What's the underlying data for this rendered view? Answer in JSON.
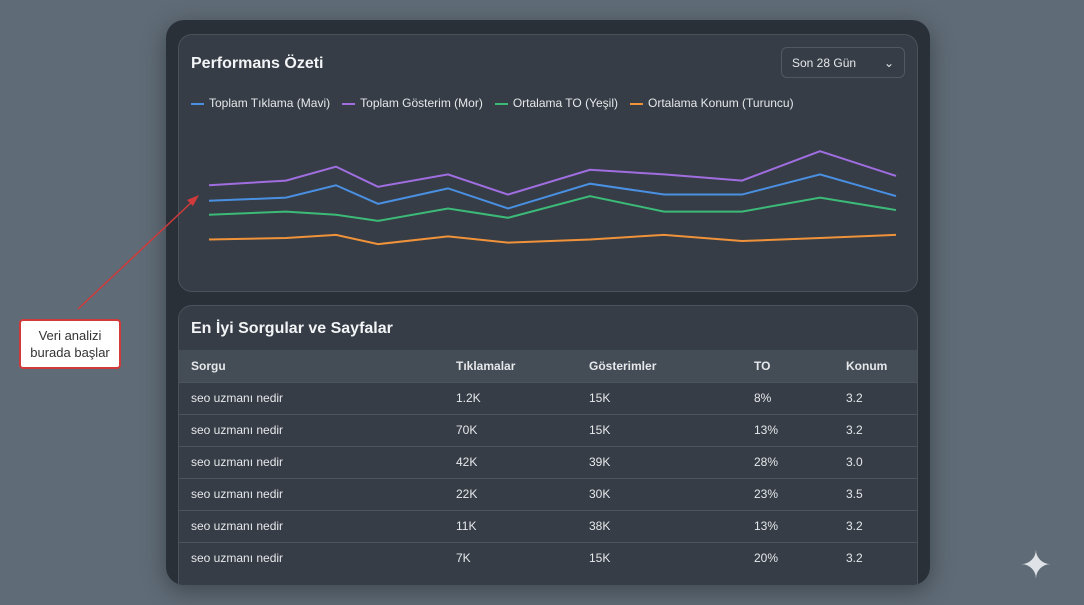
{
  "summary": {
    "title": "Performans Özeti",
    "range_select": "Son 28 Gün"
  },
  "chart_data": {
    "type": "line",
    "title": "",
    "xlabel": "",
    "ylabel": "",
    "ylim": [
      0,
      100
    ],
    "grid": false,
    "legend_position": "top-left",
    "x": [
      1,
      2,
      3,
      4,
      5,
      6,
      7,
      8,
      9,
      10,
      11
    ],
    "series": [
      {
        "name": "Toplam Tıklama (Mavi)",
        "color": "#4a90e2",
        "values": [
          55,
          57,
          65,
          53,
          63,
          50,
          66,
          59,
          59,
          72,
          58
        ]
      },
      {
        "name": "Toplam Gösterim (Mor)",
        "color": "#a06ee0",
        "values": [
          65,
          68,
          77,
          64,
          72,
          59,
          75,
          72,
          68,
          87,
          71
        ]
      },
      {
        "name": "Ortalama TO (Yeşil)",
        "color": "#3cba78",
        "values": [
          46,
          48,
          46,
          42,
          50,
          44,
          58,
          48,
          48,
          57,
          49
        ]
      },
      {
        "name": "Ortalama Konum (Turuncu)",
        "color": "#f0923a",
        "values": [
          30,
          31,
          33,
          27,
          32,
          28,
          30,
          33,
          29,
          31,
          33
        ]
      }
    ]
  },
  "table": {
    "title": "En İyi Sorgular ve Sayfalar",
    "headers": [
      "Sorgu",
      "Tıklamalar",
      "Gösterimler",
      "TO",
      "Konum"
    ],
    "rows": [
      [
        "seo uzmanı nedir",
        "1.2K",
        "15K",
        "8%",
        "3.2"
      ],
      [
        "seo uzmanı nedir",
        "70K",
        "15K",
        "13%",
        "3.2"
      ],
      [
        "seo uzmanı nedir",
        "42K",
        "39K",
        "28%",
        "3.0"
      ],
      [
        "seo uzmanı nedir",
        "22K",
        "30K",
        "23%",
        "3.5"
      ],
      [
        "seo uzmanı nedir",
        "11K",
        "38K",
        "13%",
        "3.2"
      ],
      [
        "seo uzmanı nedir",
        "7K",
        "15K",
        "20%",
        "3.2"
      ]
    ]
  },
  "annotation": {
    "text_line1": "Veri analizi",
    "text_line2": "burada başlar",
    "color": "#d03a3a"
  },
  "icons": {
    "dropdown": "chevron-down-icon",
    "corner": "sparkle-icon"
  }
}
